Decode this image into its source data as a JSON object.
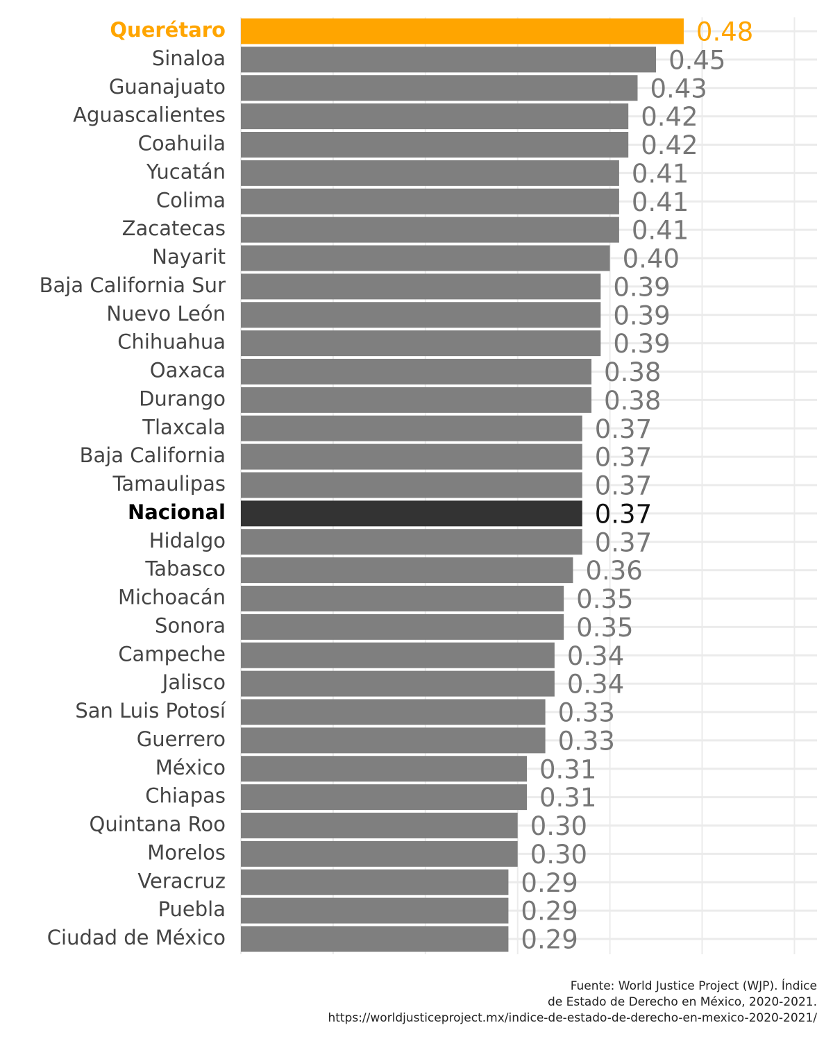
{
  "chart_data": {
    "type": "bar",
    "orientation": "horizontal",
    "categories": [
      "Querétaro",
      "Sinaloa",
      "Guanajuato",
      "Aguascalientes",
      "Coahuila",
      "Yucatán",
      "Colima",
      "Zacatecas",
      "Nayarit",
      "Baja California Sur",
      "Nuevo León",
      "Chihuahua",
      "Oaxaca",
      "Durango",
      "Tlaxcala",
      "Baja California",
      "Tamaulipas",
      "Nacional",
      "Hidalgo",
      "Tabasco",
      "Michoacán",
      "Sonora",
      "Campeche",
      "Jalisco",
      "San Luis Potosí",
      "Guerrero",
      "México",
      "Chiapas",
      "Quintana Roo",
      "Morelos",
      "Veracruz",
      "Puebla",
      "Ciudad de México"
    ],
    "values": [
      0.48,
      0.45,
      0.43,
      0.42,
      0.42,
      0.41,
      0.41,
      0.41,
      0.4,
      0.39,
      0.39,
      0.39,
      0.38,
      0.38,
      0.37,
      0.37,
      0.37,
      0.37,
      0.37,
      0.36,
      0.35,
      0.35,
      0.34,
      0.34,
      0.33,
      0.33,
      0.31,
      0.31,
      0.3,
      0.3,
      0.29,
      0.29,
      0.29
    ],
    "value_labels": [
      "0.48",
      "0.45",
      "0.43",
      "0.42",
      "0.42",
      "0.41",
      "0.41",
      "0.41",
      "0.40",
      "0.39",
      "0.39",
      "0.39",
      "0.38",
      "0.38",
      "0.37",
      "0.37",
      "0.37",
      "0.37",
      "0.37",
      "0.36",
      "0.35",
      "0.35",
      "0.34",
      "0.34",
      "0.33",
      "0.33",
      "0.31",
      "0.31",
      "0.30",
      "0.30",
      "0.29",
      "0.29",
      "0.29"
    ],
    "color": "#7f7f7f",
    "colors": [
      "#FFA500",
      "#7f7f7f",
      "#7f7f7f",
      "#7f7f7f",
      "#7f7f7f",
      "#7f7f7f",
      "#7f7f7f",
      "#7f7f7f",
      "#7f7f7f",
      "#7f7f7f",
      "#7f7f7f",
      "#7f7f7f",
      "#7f7f7f",
      "#7f7f7f",
      "#7f7f7f",
      "#7f7f7f",
      "#7f7f7f",
      "#333333",
      "#7f7f7f",
      "#7f7f7f",
      "#7f7f7f",
      "#7f7f7f",
      "#7f7f7f",
      "#7f7f7f",
      "#7f7f7f",
      "#7f7f7f",
      "#7f7f7f",
      "#7f7f7f",
      "#7f7f7f",
      "#7f7f7f",
      "#7f7f7f",
      "#7f7f7f",
      "#7f7f7f"
    ],
    "xlim": [
      0,
      0.62
    ],
    "xticks": [
      0,
      0.1,
      0.2,
      0.3,
      0.4,
      0.5,
      0.6
    ],
    "grid": true,
    "source": [
      "Fuente: World Justice Project (WJP). Índice",
      "de Estado de Derecho en México, 2020-2021.",
      "https://worldjusticeproject.mx/indice-de-estado-de-derecho-en-mexico-2020-2021/"
    ]
  }
}
